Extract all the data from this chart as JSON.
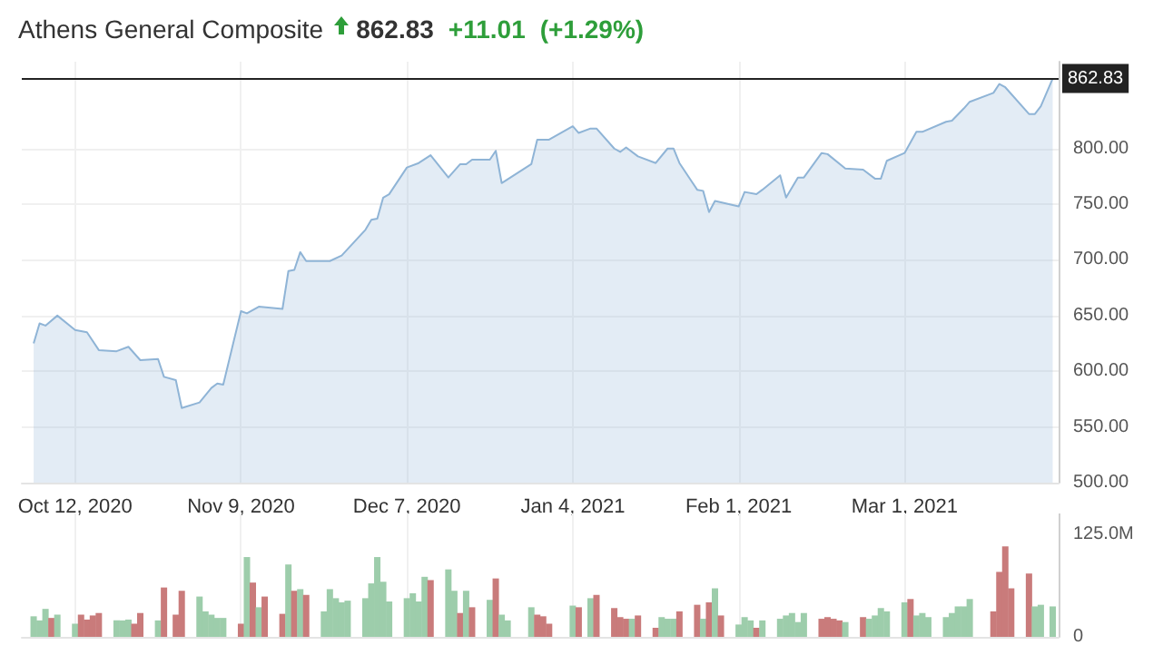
{
  "chart_data": [
    {
      "type": "area",
      "title": "Athens General Composite",
      "annotations": [
        "862.83",
        "+11.01",
        "(+1.29%)"
      ],
      "marker": "none",
      "grid": true,
      "xlim": [
        "2020-10-03",
        "2021-03-27"
      ],
      "xticks": [
        {
          "value": "2020-10-12",
          "label": "Oct 12, 2020"
        },
        {
          "value": "2020-11-09",
          "label": "Nov 9, 2020"
        },
        {
          "value": "2020-12-07",
          "label": "Dec 7, 2020"
        },
        {
          "value": "2021-01-04",
          "label": "Jan 4, 2021"
        },
        {
          "value": "2021-02-01",
          "label": "Feb 1, 2021"
        },
        {
          "value": "2021-03-01",
          "label": "Mar 1, 2021"
        }
      ],
      "ylim": [
        500,
        878
      ],
      "yticks": [
        {
          "value": 500,
          "label": "500.00"
        },
        {
          "value": 550,
          "label": "550.00"
        },
        {
          "value": 600,
          "label": "600.00"
        },
        {
          "value": 650,
          "label": "650.00"
        },
        {
          "value": 700,
          "label": "700.00"
        },
        {
          "value": 750,
          "label": "750.00"
        },
        {
          "value": 800,
          "label": "800.00"
        }
      ],
      "ref_lines": [
        {
          "axis": "y",
          "value": 862.83,
          "label": "862.83",
          "color": "#222222"
        }
      ],
      "series": [
        {
          "color": "#8fb4d6",
          "x": [
            "2020-10-05",
            "2020-10-06",
            "2020-10-07",
            "2020-10-09",
            "2020-10-12",
            "2020-10-14",
            "2020-10-16",
            "2020-10-19",
            "2020-10-21",
            "2020-10-23",
            "2020-10-26",
            "2020-10-27",
            "2020-10-29",
            "2020-10-30",
            "2020-11-02",
            "2020-11-04",
            "2020-11-05",
            "2020-11-06",
            "2020-11-09",
            "2020-11-10",
            "2020-11-12",
            "2020-11-16",
            "2020-11-17",
            "2020-11-18",
            "2020-11-19",
            "2020-11-20",
            "2020-11-24",
            "2020-11-26",
            "2020-11-30",
            "2020-12-01",
            "2020-12-02",
            "2020-12-03",
            "2020-12-04",
            "2020-12-07",
            "2020-12-09",
            "2020-12-11",
            "2020-12-14",
            "2020-12-16",
            "2020-12-17",
            "2020-12-18",
            "2020-12-21",
            "2020-12-22",
            "2020-12-23",
            "2020-12-28",
            "2020-12-29",
            "2020-12-31",
            "2021-01-04",
            "2021-01-05",
            "2021-01-07",
            "2021-01-08",
            "2021-01-11",
            "2021-01-12",
            "2021-01-13",
            "2021-01-15",
            "2021-01-18",
            "2021-01-20",
            "2021-01-21",
            "2021-01-22",
            "2021-01-25",
            "2021-01-26",
            "2021-01-27",
            "2021-01-28",
            "2021-02-01",
            "2021-02-02",
            "2021-02-04",
            "2021-02-05",
            "2021-02-08",
            "2021-02-09",
            "2021-02-11",
            "2021-02-12",
            "2021-02-15",
            "2021-02-16",
            "2021-02-19",
            "2021-02-22",
            "2021-02-24",
            "2021-02-25",
            "2021-02-26",
            "2021-03-01",
            "2021-03-03",
            "2021-03-04",
            "2021-03-08",
            "2021-03-09",
            "2021-03-11",
            "2021-03-12",
            "2021-03-16",
            "2021-03-17",
            "2021-03-18",
            "2021-03-22",
            "2021-03-23",
            "2021-03-24",
            "2021-03-26"
          ],
          "values": [
            625,
            643,
            641,
            650,
            637,
            635,
            619,
            618,
            622,
            610,
            611,
            595,
            592,
            567,
            572,
            585,
            589,
            588,
            654,
            652,
            658,
            656,
            690,
            691,
            707,
            699,
            699,
            704,
            727,
            736,
            737,
            756,
            759,
            783,
            787,
            794,
            774,
            786,
            786,
            790,
            790,
            798,
            769,
            786,
            808,
            808,
            820,
            814,
            818,
            818,
            800,
            797,
            801,
            793,
            787,
            800,
            800,
            787,
            763,
            762,
            743,
            753,
            748,
            761,
            759,
            763,
            776,
            756,
            774,
            774,
            796,
            795,
            782,
            781,
            773,
            773,
            789,
            796,
            815,
            815,
            824,
            825,
            836,
            842,
            850,
            858,
            855,
            831,
            831,
            838,
            862.83
          ]
        }
      ]
    },
    {
      "type": "bar",
      "tick_labels": "y",
      "grid": "x",
      "xlim": [
        "2020-10-03",
        "2021-03-27"
      ],
      "xticks": [
        {
          "value": "2020-10-12",
          "label": null
        },
        {
          "value": "2020-11-09",
          "label": null
        },
        {
          "value": "2020-12-07",
          "label": null
        },
        {
          "value": "2021-01-04",
          "label": null
        },
        {
          "value": "2021-02-01",
          "label": null
        },
        {
          "value": "2021-03-01",
          "label": null
        }
      ],
      "ylim": [
        0,
        150
      ],
      "yticks": [
        0,
        {
          "value": 125,
          "label": "125.0M"
        }
      ],
      "series": [
        {
          "x": [
            "2020-10-05",
            "2020-10-06",
            "2020-10-07",
            "2020-10-08",
            "2020-10-09",
            "2020-10-12",
            "2020-10-13",
            "2020-10-14",
            "2020-10-15",
            "2020-10-16",
            "2020-10-19",
            "2020-10-20",
            "2020-10-21",
            "2020-10-22",
            "2020-10-23",
            "2020-10-26",
            "2020-10-27",
            "2020-10-29",
            "2020-10-30",
            "2020-11-02",
            "2020-11-03",
            "2020-11-04",
            "2020-11-05",
            "2020-11-06",
            "2020-11-09",
            "2020-11-10",
            "2020-11-11",
            "2020-11-12",
            "2020-11-13",
            "2020-11-16",
            "2020-11-17",
            "2020-11-18",
            "2020-11-19",
            "2020-11-20",
            "2020-11-23",
            "2020-11-24",
            "2020-11-25",
            "2020-11-26",
            "2020-11-27",
            "2020-11-30",
            "2020-12-01",
            "2020-12-02",
            "2020-12-03",
            "2020-12-04",
            "2020-12-07",
            "2020-12-08",
            "2020-12-09",
            "2020-12-10",
            "2020-12-11",
            "2020-12-14",
            "2020-12-15",
            "2020-12-16",
            "2020-12-17",
            "2020-12-18",
            "2020-12-21",
            "2020-12-22",
            "2020-12-23",
            "2020-12-24",
            "2020-12-28",
            "2020-12-29",
            "2020-12-30",
            "2020-12-31",
            "2021-01-04",
            "2021-01-05",
            "2021-01-07",
            "2021-01-08",
            "2021-01-11",
            "2021-01-12",
            "2021-01-13",
            "2021-01-14",
            "2021-01-15",
            "2021-01-18",
            "2021-01-19",
            "2021-01-20",
            "2021-01-21",
            "2021-01-22",
            "2021-01-25",
            "2021-01-26",
            "2021-01-27",
            "2021-01-28",
            "2021-01-29",
            "2021-02-01",
            "2021-02-02",
            "2021-02-03",
            "2021-02-04",
            "2021-02-05",
            "2021-02-08",
            "2021-02-09",
            "2021-02-10",
            "2021-02-11",
            "2021-02-12",
            "2021-02-15",
            "2021-02-16",
            "2021-02-17",
            "2021-02-18",
            "2021-02-19",
            "2021-02-22",
            "2021-02-23",
            "2021-02-24",
            "2021-02-25",
            "2021-02-26",
            "2021-03-01",
            "2021-03-02",
            "2021-03-03",
            "2021-03-04",
            "2021-03-05",
            "2021-03-08",
            "2021-03-09",
            "2021-03-10",
            "2021-03-11",
            "2021-03-12",
            "2021-03-16",
            "2021-03-17",
            "2021-03-18",
            "2021-03-19",
            "2021-03-22",
            "2021-03-23",
            "2021-03-24",
            "2021-03-26"
          ],
          "values": [
            25,
            20,
            34,
            23,
            27,
            16,
            27,
            21,
            26,
            29,
            20,
            20,
            21,
            16,
            29,
            20,
            60,
            27,
            56,
            49,
            31,
            27,
            23,
            23,
            16,
            97,
            66,
            36,
            49,
            28,
            88,
            56,
            58,
            51,
            31,
            58,
            47,
            42,
            44,
            47,
            65,
            97,
            67,
            43,
            47,
            53,
            43,
            73,
            69,
            82,
            56,
            29,
            56,
            36,
            45,
            71,
            27,
            20,
            36,
            27,
            25,
            16,
            38,
            36,
            47,
            51,
            35,
            24,
            22,
            22,
            26,
            11,
            24,
            22,
            22,
            31,
            39,
            22,
            42,
            59,
            26,
            15,
            24,
            20,
            11,
            20,
            22,
            26,
            29,
            18,
            29,
            22,
            24,
            22,
            20,
            18,
            24,
            22,
            26,
            35,
            31,
            42,
            46,
            26,
            29,
            24,
            24,
            29,
            37,
            37,
            46,
            31,
            79,
            110,
            59,
            77,
            37,
            39,
            37
          ],
          "colors": [
            "#9dcdab",
            "#9dcdab",
            "#9dcdab",
            "#c97b7b",
            "#9dcdab",
            "#9dcdab",
            "#c97b7b",
            "#c97b7b",
            "#c97b7b",
            "#c97b7b",
            "#9dcdab",
            "#9dcdab",
            "#9dcdab",
            "#c97b7b",
            "#c97b7b",
            "#9dcdab",
            "#c97b7b",
            "#c97b7b",
            "#c97b7b",
            "#9dcdab",
            "#9dcdab",
            "#9dcdab",
            "#9dcdab",
            "#9dcdab",
            "#c97b7b",
            "#9dcdab",
            "#c97b7b",
            "#9dcdab",
            "#c97b7b",
            "#c97b7b",
            "#9dcdab",
            "#c97b7b",
            "#9dcdab",
            "#c97b7b",
            "#9dcdab",
            "#9dcdab",
            "#9dcdab",
            "#9dcdab",
            "#9dcdab",
            "#9dcdab",
            "#9dcdab",
            "#9dcdab",
            "#9dcdab",
            "#9dcdab",
            "#9dcdab",
            "#9dcdab",
            "#9dcdab",
            "#9dcdab",
            "#c97b7b",
            "#9dcdab",
            "#9dcdab",
            "#c97b7b",
            "#9dcdab",
            "#c97b7b",
            "#9dcdab",
            "#c97b7b",
            "#9dcdab",
            "#9dcdab",
            "#9dcdab",
            "#c97b7b",
            "#c97b7b",
            "#c97b7b",
            "#9dcdab",
            "#c97b7b",
            "#9dcdab",
            "#c97b7b",
            "#c97b7b",
            "#c97b7b",
            "#c97b7b",
            "#9dcdab",
            "#c97b7b",
            "#c97b7b",
            "#9dcdab",
            "#9dcdab",
            "#9dcdab",
            "#c97b7b",
            "#c97b7b",
            "#9dcdab",
            "#c97b7b",
            "#9dcdab",
            "#c97b7b",
            "#9dcdab",
            "#9dcdab",
            "#9dcdab",
            "#c97b7b",
            "#9dcdab",
            "#9dcdab",
            "#9dcdab",
            "#9dcdab",
            "#9dcdab",
            "#9dcdab",
            "#c97b7b",
            "#c97b7b",
            "#c97b7b",
            "#c97b7b",
            "#9dcdab",
            "#c97b7b",
            "#9dcdab",
            "#9dcdab",
            "#9dcdab",
            "#9dcdab",
            "#9dcdab",
            "#c97b7b",
            "#9dcdab",
            "#9dcdab",
            "#9dcdab",
            "#9dcdab",
            "#9dcdab",
            "#9dcdab",
            "#9dcdab",
            "#9dcdab",
            "#c97b7b",
            "#c97b7b",
            "#c97b7b",
            "#c97b7b",
            "#c97b7b",
            "#9dcdab",
            "#9dcdab",
            "#9dcdab"
          ]
        }
      ]
    }
  ]
}
